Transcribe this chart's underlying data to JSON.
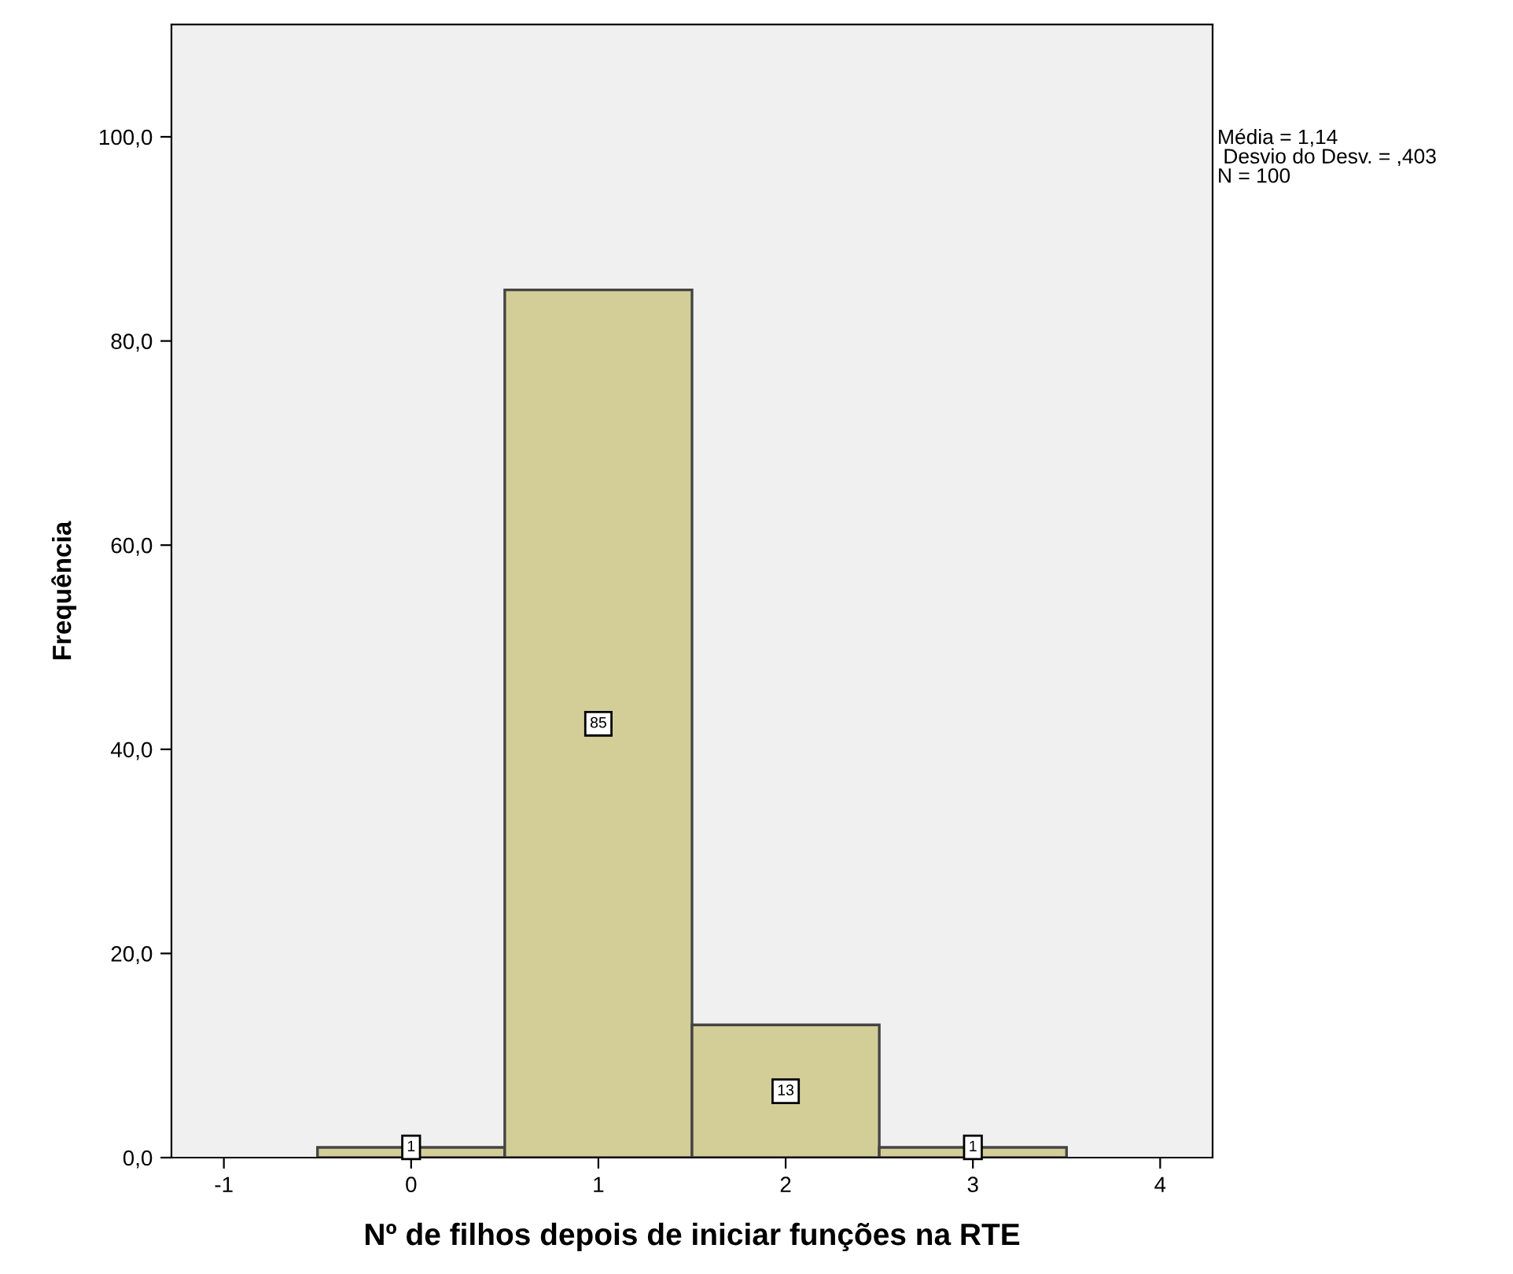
{
  "chart_data": {
    "type": "histogram",
    "xlabel": "Nº de filhos depois de iniciar funções na RTE",
    "ylabel": "Frequência",
    "bins": [
      -0.5,
      0.5,
      1.5,
      2.5,
      3.5
    ],
    "values": [
      1,
      85,
      13,
      1
    ],
    "color": "#d3ce98",
    "data_labels": true,
    "xlim": [
      -1.28,
      4.28
    ],
    "xticks": [
      -1,
      0,
      1,
      2,
      3,
      4
    ],
    "ylim": [
      0,
      111
    ],
    "yticks": [
      {
        "value": 0,
        "label": "0,0"
      },
      {
        "value": 20,
        "label": "20,0"
      },
      {
        "value": 40,
        "label": "40,0"
      },
      {
        "value": 60,
        "label": "60,0"
      },
      {
        "value": 80,
        "label": "80,0"
      },
      {
        "value": 100,
        "label": "100,0"
      }
    ],
    "grid": false,
    "annotations": [
      "Média = 1,14\n Desvio do Desv. = ,403\nN = 100"
    ]
  }
}
